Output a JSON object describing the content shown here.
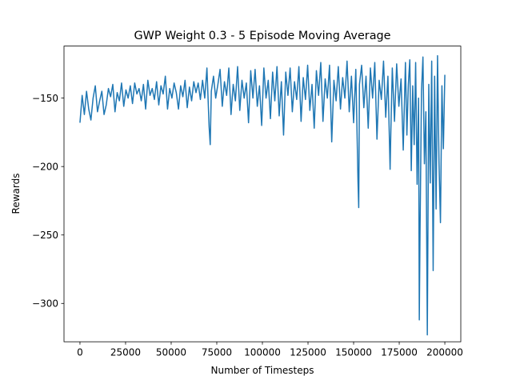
{
  "chart_data": {
    "type": "line",
    "title": "GWP Weight 0.3  - 5 Episode Moving Average",
    "xlabel": "Number of Timesteps",
    "ylabel": "Rewards",
    "xlim": [
      -8750,
      208750
    ],
    "ylim": [
      -328,
      -112
    ],
    "x_ticks": [
      0,
      25000,
      50000,
      75000,
      100000,
      125000,
      150000,
      175000,
      200000
    ],
    "y_ticks": [
      -300,
      -250,
      -200,
      -150
    ],
    "grid": false,
    "color": "#1f77b4",
    "series": [
      {
        "name": "",
        "points": [
          [
            0,
            -168
          ],
          [
            1200,
            -148
          ],
          [
            2400,
            -162
          ],
          [
            3600,
            -145
          ],
          [
            4800,
            -158
          ],
          [
            6000,
            -166
          ],
          [
            7200,
            -150
          ],
          [
            8400,
            -141
          ],
          [
            9600,
            -160
          ],
          [
            10800,
            -152
          ],
          [
            12000,
            -145
          ],
          [
            13200,
            -162
          ],
          [
            14400,
            -155
          ],
          [
            15600,
            -143
          ],
          [
            16800,
            -149
          ],
          [
            18000,
            -140
          ],
          [
            19200,
            -160
          ],
          [
            20400,
            -146
          ],
          [
            21600,
            -152
          ],
          [
            22800,
            -139
          ],
          [
            24000,
            -156
          ],
          [
            25200,
            -144
          ],
          [
            26400,
            -150
          ],
          [
            27600,
            -141
          ],
          [
            28800,
            -154
          ],
          [
            30000,
            -139
          ],
          [
            31200,
            -147
          ],
          [
            32400,
            -143
          ],
          [
            33600,
            -152
          ],
          [
            34800,
            -140
          ],
          [
            36000,
            -158
          ],
          [
            37200,
            -137
          ],
          [
            38400,
            -148
          ],
          [
            39600,
            -143
          ],
          [
            40800,
            -151
          ],
          [
            42000,
            -138
          ],
          [
            43200,
            -155
          ],
          [
            44400,
            -141
          ],
          [
            45600,
            -147
          ],
          [
            46800,
            -134
          ],
          [
            48000,
            -158
          ],
          [
            49200,
            -143
          ],
          [
            50400,
            -150
          ],
          [
            51600,
            -139
          ],
          [
            52800,
            -146
          ],
          [
            54000,
            -158
          ],
          [
            55200,
            -141
          ],
          [
            56400,
            -149
          ],
          [
            57600,
            -137
          ],
          [
            58800,
            -157
          ],
          [
            60000,
            -142
          ],
          [
            61200,
            -152
          ],
          [
            62400,
            -138
          ],
          [
            63600,
            -146
          ],
          [
            64800,
            -139
          ],
          [
            66000,
            -151
          ],
          [
            67200,
            -137
          ],
          [
            68400,
            -150
          ],
          [
            69600,
            -128
          ],
          [
            70800,
            -171
          ],
          [
            71400,
            -184
          ],
          [
            72000,
            -145
          ],
          [
            73200,
            -134
          ],
          [
            74400,
            -150
          ],
          [
            75600,
            -140
          ],
          [
            76800,
            -129
          ],
          [
            78000,
            -156
          ],
          [
            79200,
            -138
          ],
          [
            80400,
            -148
          ],
          [
            81600,
            -128
          ],
          [
            82800,
            -162
          ],
          [
            84000,
            -140
          ],
          [
            85200,
            -152
          ],
          [
            86400,
            -127
          ],
          [
            87600,
            -159
          ],
          [
            88800,
            -137
          ],
          [
            90000,
            -150
          ],
          [
            91200,
            -139
          ],
          [
            92400,
            -168
          ],
          [
            93600,
            -130
          ],
          [
            94800,
            -150
          ],
          [
            96000,
            -129
          ],
          [
            97200,
            -156
          ],
          [
            98400,
            -141
          ],
          [
            99600,
            -170
          ],
          [
            100800,
            -128
          ],
          [
            102000,
            -150
          ],
          [
            103200,
            -137
          ],
          [
            104400,
            -165
          ],
          [
            105600,
            -131
          ],
          [
            106800,
            -152
          ],
          [
            108000,
            -127
          ],
          [
            109200,
            -163
          ],
          [
            110400,
            -138
          ],
          [
            111600,
            -177
          ],
          [
            112800,
            -131
          ],
          [
            114000,
            -148
          ],
          [
            115200,
            -128
          ],
          [
            116400,
            -160
          ],
          [
            117600,
            -138
          ],
          [
            118800,
            -151
          ],
          [
            120000,
            -127
          ],
          [
            121200,
            -167
          ],
          [
            122400,
            -135
          ],
          [
            123600,
            -151
          ],
          [
            124800,
            -126
          ],
          [
            126000,
            -159
          ],
          [
            127200,
            -140
          ],
          [
            128400,
            -172
          ],
          [
            129600,
            -130
          ],
          [
            130800,
            -148
          ],
          [
            132000,
            -124
          ],
          [
            133200,
            -167
          ],
          [
            134400,
            -136
          ],
          [
            135600,
            -150
          ],
          [
            136800,
            -126
          ],
          [
            138000,
            -182
          ],
          [
            139200,
            -137
          ],
          [
            140400,
            -152
          ],
          [
            141600,
            -127
          ],
          [
            142800,
            -158
          ],
          [
            144000,
            -135
          ],
          [
            145200,
            -150
          ],
          [
            146400,
            -123
          ],
          [
            147600,
            -160
          ],
          [
            148800,
            -134
          ],
          [
            150000,
            -168
          ],
          [
            151200,
            -129
          ],
          [
            152400,
            -211
          ],
          [
            152800,
            -230
          ],
          [
            153200,
            -140
          ],
          [
            154400,
            -126
          ],
          [
            155600,
            -157
          ],
          [
            156800,
            -134
          ],
          [
            158000,
            -172
          ],
          [
            159200,
            -128
          ],
          [
            160400,
            -150
          ],
          [
            161600,
            -124
          ],
          [
            162800,
            -180
          ],
          [
            164000,
            -137
          ],
          [
            165200,
            -151
          ],
          [
            166400,
            -123
          ],
          [
            167600,
            -164
          ],
          [
            168800,
            -134
          ],
          [
            170000,
            -202
          ],
          [
            170400,
            -175
          ],
          [
            171200,
            -128
          ],
          [
            172400,
            -167
          ],
          [
            173600,
            -125
          ],
          [
            174800,
            -156
          ],
          [
            176000,
            -136
          ],
          [
            177200,
            -188
          ],
          [
            178400,
            -124
          ],
          [
            179200,
            -177
          ],
          [
            180000,
            -140
          ],
          [
            180800,
            -122
          ],
          [
            181600,
            -203
          ],
          [
            182400,
            -141
          ],
          [
            183200,
            -184
          ],
          [
            184000,
            -124
          ],
          [
            184800,
            -213
          ],
          [
            185600,
            -150
          ],
          [
            186000,
            -312
          ],
          [
            186400,
            -248
          ],
          [
            187200,
            -145
          ],
          [
            188000,
            -120
          ],
          [
            188800,
            -198
          ],
          [
            189600,
            -160
          ],
          [
            190400,
            -323
          ],
          [
            191200,
            -140
          ],
          [
            192000,
            -212
          ],
          [
            192800,
            -123
          ],
          [
            193600,
            -276
          ],
          [
            194400,
            -134
          ],
          [
            195200,
            -231
          ],
          [
            196000,
            -119
          ],
          [
            196800,
            -197
          ],
          [
            197600,
            -241
          ],
          [
            198400,
            -141
          ],
          [
            199200,
            -187
          ],
          [
            200000,
            -133
          ]
        ]
      }
    ]
  }
}
